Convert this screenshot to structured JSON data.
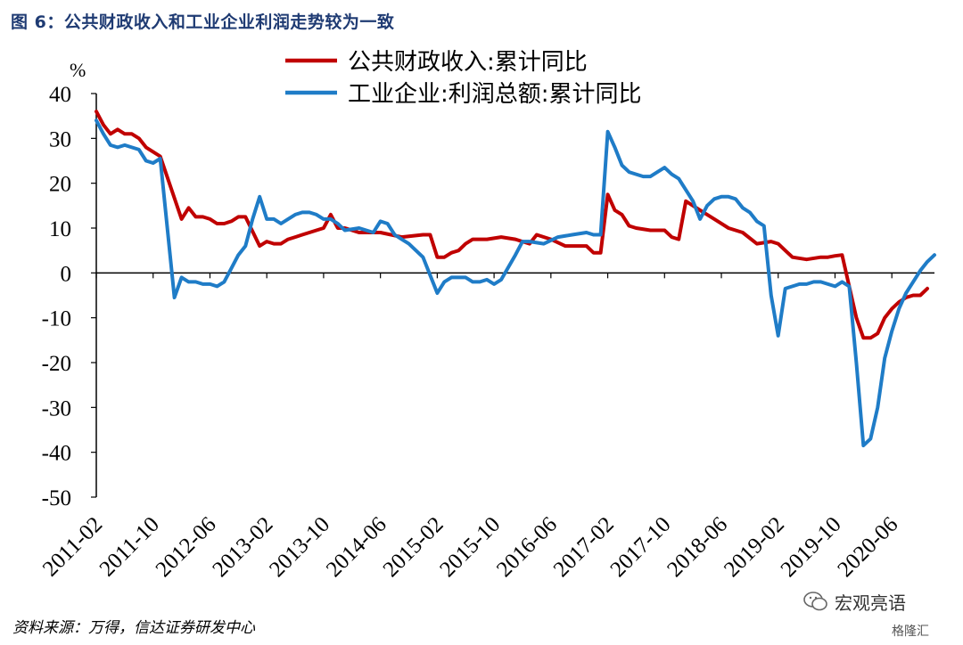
{
  "title": "图 6：公共财政收入和工业企业利润走势较为一致",
  "source": "资料来源：万得，信达证券研发中心",
  "watermark": "宏观亮语",
  "watermark2": "格隆汇",
  "chart_data": {
    "type": "line",
    "ylabel": "%",
    "ylim": [
      -50,
      40
    ],
    "yticks": [
      40,
      30,
      20,
      10,
      0,
      -10,
      -20,
      -30,
      -40,
      -50
    ],
    "xlim": [
      "2011-02",
      "2020-12"
    ],
    "xticks": [
      "2011-02",
      "2011-10",
      "2012-06",
      "2013-02",
      "2013-10",
      "2014-06",
      "2015-02",
      "2015-10",
      "2016-06",
      "2017-02",
      "2017-10",
      "2018-06",
      "2019-02",
      "2019-10",
      "2020-06"
    ],
    "grid": false,
    "legend_position": "top-center",
    "series": [
      {
        "name": "公共财政收入:累计同比",
        "color": "#c00000",
        "points": [
          [
            "2011-02",
            36
          ],
          [
            "2011-03",
            33
          ],
          [
            "2011-04",
            31
          ],
          [
            "2011-05",
            32
          ],
          [
            "2011-06",
            31
          ],
          [
            "2011-07",
            31
          ],
          [
            "2011-08",
            30
          ],
          [
            "2011-09",
            28
          ],
          [
            "2011-10",
            27
          ],
          [
            "2011-11",
            26
          ],
          [
            "2012-02",
            12
          ],
          [
            "2012-03",
            14.5
          ],
          [
            "2012-04",
            12.5
          ],
          [
            "2012-05",
            12.5
          ],
          [
            "2012-06",
            12
          ],
          [
            "2012-07",
            11
          ],
          [
            "2012-08",
            11
          ],
          [
            "2012-09",
            11.5
          ],
          [
            "2012-10",
            12.5
          ],
          [
            "2012-11",
            12.5
          ],
          [
            "2013-01",
            6
          ],
          [
            "2013-02",
            7
          ],
          [
            "2013-03",
            6.5
          ],
          [
            "2013-04",
            6.5
          ],
          [
            "2013-05",
            7.5
          ],
          [
            "2013-06",
            8
          ],
          [
            "2013-07",
            8.5
          ],
          [
            "2013-08",
            9
          ],
          [
            "2013-09",
            9.5
          ],
          [
            "2013-10",
            10
          ],
          [
            "2013-11",
            13
          ],
          [
            "2013-12",
            10
          ],
          [
            "2014-01",
            10
          ],
          [
            "2014-03",
            9
          ],
          [
            "2014-06",
            9
          ],
          [
            "2014-09",
            8
          ],
          [
            "2014-12",
            8.5
          ],
          [
            "2015-01",
            8.5
          ],
          [
            "2015-02",
            3.5
          ],
          [
            "2015-03",
            3.5
          ],
          [
            "2015-04",
            4.5
          ],
          [
            "2015-05",
            5
          ],
          [
            "2015-06",
            6.5
          ],
          [
            "2015-07",
            7.5
          ],
          [
            "2015-09",
            7.5
          ],
          [
            "2015-11",
            8
          ],
          [
            "2016-01",
            7.5
          ],
          [
            "2016-03",
            6.5
          ],
          [
            "2016-04",
            8.5
          ],
          [
            "2016-06",
            7.5
          ],
          [
            "2016-08",
            6
          ],
          [
            "2016-11",
            6
          ],
          [
            "2016-12",
            4.5
          ],
          [
            "2017-01",
            4.5
          ],
          [
            "2017-02",
            17.5
          ],
          [
            "2017-03",
            14
          ],
          [
            "2017-04",
            13
          ],
          [
            "2017-05",
            10.5
          ],
          [
            "2017-06",
            10
          ],
          [
            "2017-08",
            9.5
          ],
          [
            "2017-10",
            9.5
          ],
          [
            "2017-11",
            8
          ],
          [
            "2017-12",
            7.5
          ],
          [
            "2018-01",
            16
          ],
          [
            "2018-03",
            14
          ],
          [
            "2018-05",
            12
          ],
          [
            "2018-07",
            10
          ],
          [
            "2018-09",
            9
          ],
          [
            "2018-11",
            6.5
          ],
          [
            "2019-01",
            7
          ],
          [
            "2019-02",
            6.5
          ],
          [
            "2019-03",
            5
          ],
          [
            "2019-04",
            3.5
          ],
          [
            "2019-06",
            3
          ],
          [
            "2019-08",
            3.5
          ],
          [
            "2019-09",
            3.5
          ],
          [
            "2019-10",
            3.8
          ],
          [
            "2019-11",
            4
          ],
          [
            "2019-12",
            -3
          ],
          [
            "2020-01",
            -10
          ],
          [
            "2020-02",
            -14.5
          ],
          [
            "2020-03",
            -14.5
          ],
          [
            "2020-04",
            -13.5
          ],
          [
            "2020-05",
            -10
          ],
          [
            "2020-06",
            -8
          ],
          [
            "2020-07",
            -6.5
          ],
          [
            "2020-08",
            -5.5
          ],
          [
            "2020-09",
            -5
          ],
          [
            "2020-10",
            -5
          ],
          [
            "2020-11",
            -3.5
          ]
        ]
      },
      {
        "name": "工业企业:利润总额:累计同比",
        "color": "#1f7cc7",
        "points": [
          [
            "2011-02",
            34
          ],
          [
            "2011-03",
            31
          ],
          [
            "2011-04",
            28.5
          ],
          [
            "2011-05",
            28
          ],
          [
            "2011-06",
            28.5
          ],
          [
            "2011-07",
            28
          ],
          [
            "2011-08",
            27.5
          ],
          [
            "2011-09",
            25
          ],
          [
            "2011-10",
            24.5
          ],
          [
            "2011-11",
            25.5
          ],
          [
            "2012-01",
            -5.5
          ],
          [
            "2012-02",
            -1
          ],
          [
            "2012-03",
            -2
          ],
          [
            "2012-04",
            -2
          ],
          [
            "2012-05",
            -2.5
          ],
          [
            "2012-06",
            -2.5
          ],
          [
            "2012-07",
            -3
          ],
          [
            "2012-08",
            -2
          ],
          [
            "2012-09",
            1
          ],
          [
            "2012-10",
            4
          ],
          [
            "2012-11",
            6
          ],
          [
            "2012-12",
            12
          ],
          [
            "2013-01",
            17
          ],
          [
            "2013-02",
            12
          ],
          [
            "2013-03",
            12
          ],
          [
            "2013-04",
            11
          ],
          [
            "2013-05",
            12
          ],
          [
            "2013-06",
            13
          ],
          [
            "2013-07",
            13.5
          ],
          [
            "2013-08",
            13.5
          ],
          [
            "2013-09",
            13
          ],
          [
            "2013-10",
            12
          ],
          [
            "2013-11",
            12
          ],
          [
            "2013-12",
            11
          ],
          [
            "2014-01",
            9.5
          ],
          [
            "2014-03",
            10
          ],
          [
            "2014-05",
            9
          ],
          [
            "2014-06",
            11.5
          ],
          [
            "2014-07",
            11
          ],
          [
            "2014-08",
            8.5
          ],
          [
            "2014-09",
            7.5
          ],
          [
            "2014-10",
            6.5
          ],
          [
            "2014-11",
            5
          ],
          [
            "2014-12",
            3.5
          ],
          [
            "2015-01",
            -0.5
          ],
          [
            "2015-02",
            -4.5
          ],
          [
            "2015-03",
            -2
          ],
          [
            "2015-04",
            -1
          ],
          [
            "2015-05",
            -1
          ],
          [
            "2015-06",
            -1
          ],
          [
            "2015-07",
            -2
          ],
          [
            "2015-08",
            -2
          ],
          [
            "2015-09",
            -1.5
          ],
          [
            "2015-10",
            -2.5
          ],
          [
            "2015-11",
            -1.5
          ],
          [
            "2016-01",
            4
          ],
          [
            "2016-02",
            7
          ],
          [
            "2016-03",
            7
          ],
          [
            "2016-05",
            6.5
          ],
          [
            "2016-07",
            8
          ],
          [
            "2016-09",
            8.5
          ],
          [
            "2016-11",
            9
          ],
          [
            "2016-12",
            8.5
          ],
          [
            "2017-01",
            8.5
          ],
          [
            "2017-02",
            31.5
          ],
          [
            "2017-03",
            28
          ],
          [
            "2017-04",
            24
          ],
          [
            "2017-05",
            22.5
          ],
          [
            "2017-06",
            22
          ],
          [
            "2017-07",
            21.5
          ],
          [
            "2017-08",
            21.5
          ],
          [
            "2017-09",
            22.5
          ],
          [
            "2017-10",
            23.5
          ],
          [
            "2017-11",
            22
          ],
          [
            "2017-12",
            21
          ],
          [
            "2018-01",
            18.5
          ],
          [
            "2018-02",
            16
          ],
          [
            "2018-03",
            12
          ],
          [
            "2018-04",
            15
          ],
          [
            "2018-05",
            16.5
          ],
          [
            "2018-06",
            17
          ],
          [
            "2018-07",
            17
          ],
          [
            "2018-08",
            16.5
          ],
          [
            "2018-09",
            14.5
          ],
          [
            "2018-10",
            13.5
          ],
          [
            "2018-11",
            11.5
          ],
          [
            "2018-12",
            10.5
          ],
          [
            "2019-01",
            -5
          ],
          [
            "2019-02",
            -14
          ],
          [
            "2019-03",
            -3.5
          ],
          [
            "2019-04",
            -3
          ],
          [
            "2019-05",
            -2.5
          ],
          [
            "2019-06",
            -2.5
          ],
          [
            "2019-07",
            -2
          ],
          [
            "2019-08",
            -2
          ],
          [
            "2019-09",
            -2.5
          ],
          [
            "2019-10",
            -3
          ],
          [
            "2019-11",
            -2
          ],
          [
            "2019-12",
            -3
          ],
          [
            "2020-01",
            -20
          ],
          [
            "2020-02",
            -38.5
          ],
          [
            "2020-03",
            -37
          ],
          [
            "2020-04",
            -30
          ],
          [
            "2020-05",
            -19
          ],
          [
            "2020-06",
            -13
          ],
          [
            "2020-07",
            -8
          ],
          [
            "2020-08",
            -4.5
          ],
          [
            "2020-09",
            -2
          ],
          [
            "2020-10",
            0.5
          ],
          [
            "2020-11",
            2.5
          ],
          [
            "2020-12",
            4
          ]
        ]
      }
    ]
  }
}
